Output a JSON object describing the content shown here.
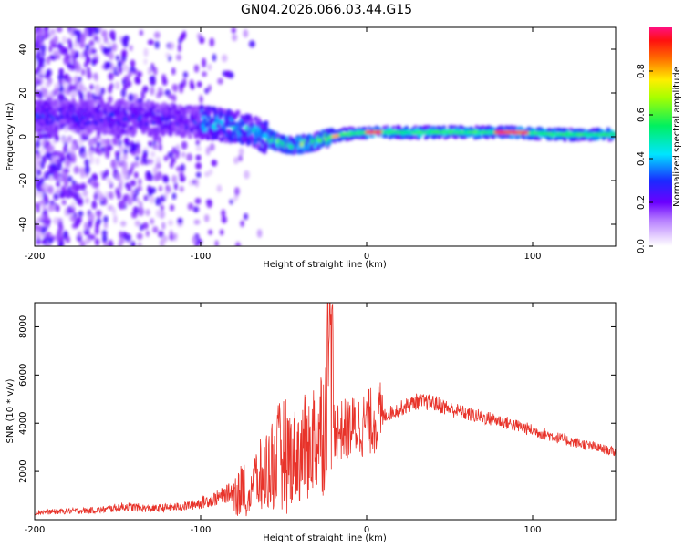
{
  "figure": {
    "title": "GN04.2026.066.03.44.G15"
  },
  "chart_data": [
    {
      "type": "heatmap",
      "xlabel": "Height of straight line (km)",
      "ylabel": "Frequency (Hz)",
      "xlim": [
        -200,
        150
      ],
      "ylim": [
        -50,
        50
      ],
      "xticks": [
        -200,
        -100,
        0,
        100
      ],
      "yticks": [
        -40,
        -20,
        0,
        20,
        40
      ],
      "colorbar": {
        "label": "Normalized spectral amplitude",
        "range": [
          0,
          1
        ],
        "ticks": [
          "0.0",
          "0.2",
          "0.4",
          "0.6",
          "0.8"
        ],
        "colormap": "rainbow (white-purple-blue-cyan-green-yellow-red-magenta)"
      },
      "ridge": {
        "description": "Dominant frequency trace",
        "x": [
          -200,
          -160,
          -120,
          -90,
          -70,
          -55,
          -45,
          -35,
          -25,
          -15,
          0,
          30,
          60,
          90,
          120,
          150
        ],
        "y": [
          10,
          9,
          8,
          6,
          3,
          -2,
          -4,
          -3,
          -1,
          1,
          2,
          2,
          2,
          2,
          1,
          1
        ]
      },
      "grid": false
    },
    {
      "type": "line",
      "xlabel": "Height of straight line (km)",
      "ylabel": "SNR (10 * v/v)",
      "xlim": [
        -200,
        150
      ],
      "ylim": [
        0,
        9000
      ],
      "xticks": [
        -200,
        -100,
        0,
        100
      ],
      "yticks": [
        2000,
        4000,
        6000,
        8000
      ],
      "series": [
        {
          "color": "#e8332a",
          "x": [
            -200,
            -180,
            -160,
            -145,
            -130,
            -110,
            -100,
            -90,
            -80,
            -70,
            -60,
            -50,
            -45,
            -40,
            -35,
            -30,
            -25,
            -22,
            -20,
            -15,
            -10,
            0,
            10,
            20,
            30,
            40,
            50,
            60,
            80,
            100,
            120,
            150
          ],
          "y": [
            300,
            350,
            400,
            550,
            450,
            550,
            700,
            900,
            1200,
            1500,
            2200,
            3000,
            2600,
            2800,
            3100,
            3600,
            4000,
            8800,
            3800,
            3700,
            3800,
            4000,
            4300,
            4600,
            4900,
            4850,
            4600,
            4400,
            4100,
            3700,
            3300,
            2800
          ]
        }
      ],
      "grid": false
    }
  ]
}
